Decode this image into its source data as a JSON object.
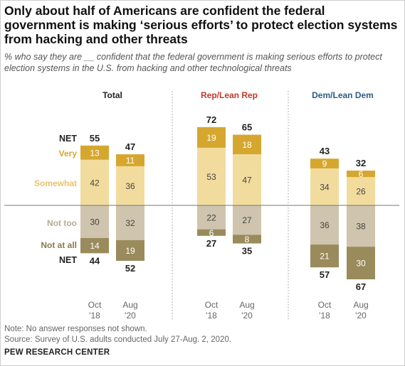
{
  "title": "Only about half of Americans are confident the federal government is making ‘serious efforts’ to protect election systems from hacking and other threats",
  "subtitle": "% who say they are __ confident that the federal government is making serious efforts to protect election systems in the U.S. from hacking and other technological threats",
  "note": "Note: No answer responses not shown.",
  "source": "Source: Survey of U.S. adults conducted July 27-Aug. 2, 2020.",
  "org": "PEW RESEARCH CENTER",
  "colors": {
    "very": "#d5a72f",
    "somewhat": "#f2dc9d",
    "not_too": "#cfc4ad",
    "not_at_all": "#9a8b5c",
    "rep": "#c0392b",
    "dem": "#2b5d8a",
    "divider": "#9e9e9e",
    "baseline": "#777777"
  },
  "chart_data": {
    "type": "bar",
    "stacked": "diverging",
    "categories": [
      "Oct '18",
      "Aug '20"
    ],
    "category_labels": [
      [
        "Oct",
        "'18"
      ],
      [
        "Aug",
        "'20"
      ]
    ],
    "row_labels": {
      "net_top": "NET",
      "very": "Very",
      "somewhat": "Somewhat",
      "not_too": "Not too",
      "not_at_all": "Not at all",
      "net_bottom": "NET"
    },
    "panels": [
      {
        "name": "Total",
        "name_color": "#222222",
        "bars": [
          {
            "very": 13,
            "somewhat": 42,
            "not_too": 30,
            "not_at_all": 14,
            "net_confident": 55,
            "net_not": 44
          },
          {
            "very": 11,
            "somewhat": 36,
            "not_too": 32,
            "not_at_all": 19,
            "net_confident": 47,
            "net_not": 52
          }
        ]
      },
      {
        "name": "Rep/Lean Rep",
        "name_color": "#c0392b",
        "bars": [
          {
            "very": 19,
            "somewhat": 53,
            "not_too": 22,
            "not_at_all": 6,
            "net_confident": 72,
            "net_not": 27
          },
          {
            "very": 18,
            "somewhat": 47,
            "not_too": 27,
            "not_at_all": 8,
            "net_confident": 65,
            "net_not": 35
          }
        ]
      },
      {
        "name": "Dem/Lean Dem",
        "name_color": "#2b5d8a",
        "bars": [
          {
            "very": 9,
            "somewhat": 34,
            "not_too": 36,
            "not_at_all": 21,
            "net_confident": 43,
            "net_not": 57
          },
          {
            "very": 6,
            "somewhat": 26,
            "not_too": 38,
            "not_at_all": 30,
            "net_confident": 32,
            "net_not": 67
          }
        ]
      }
    ]
  }
}
